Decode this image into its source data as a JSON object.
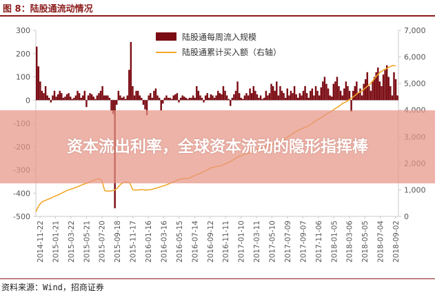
{
  "figure_title": "图 8：陆股通流动情况",
  "source_note": "资料来源：Wind，招商证券",
  "banner_text": "资本流出利率，全球资本流动的隐形指挥棒",
  "colors": {
    "bar": "#7b0c14",
    "line": "#f2a628",
    "title": "#8b1a1a",
    "axis": "#c8c8c8",
    "tick_text": "#555555"
  },
  "chart_data": {
    "type": "bar",
    "title": "",
    "xlabel": "",
    "ylabel": "",
    "ylim": [
      -500,
      300
    ],
    "y2lim": [
      0,
      7000
    ],
    "yticks": [
      300,
      200,
      100,
      0,
      -100,
      -200,
      -300,
      -400,
      -500
    ],
    "y2ticks": [
      "7,000",
      "6,000",
      "5,000",
      "4,000",
      "3,000",
      "2,000",
      "1,000",
      "0"
    ],
    "grid": false,
    "legend_position": "top-center",
    "x_tick_labels": [
      "2014-11-22",
      "2015-01-21",
      "2015-03-22",
      "2015-05-21",
      "2015-07-20",
      "2015-09-18",
      "2015-11-17",
      "2016-01-16",
      "2016-03-16",
      "2016-05-15",
      "2016-07-14",
      "2016-09-12",
      "2016-11-11",
      "2017-01-10",
      "2017-03-11",
      "2017-05-10",
      "2017-07-09",
      "2017-09-07",
      "2017-11-06",
      "2018-01-05",
      "2018-03-06",
      "2018-05-05",
      "2018-07-04",
      "2018-09-02"
    ],
    "series": [
      {
        "name": "陆股通每周流入规模",
        "type": "bar",
        "axis": "left",
        "values": [
          230,
          145,
          80,
          40,
          30,
          60,
          20,
          10,
          -10,
          20,
          40,
          15,
          25,
          40,
          30,
          10,
          15,
          25,
          30,
          15,
          5,
          10,
          20,
          40,
          30,
          10,
          20,
          40,
          -30,
          20,
          30,
          25,
          15,
          5,
          20,
          30,
          40,
          60,
          20,
          20,
          20,
          10,
          -45,
          -60,
          -465,
          -20,
          40,
          20,
          10,
          15,
          5,
          20,
          130,
          250,
          60,
          20,
          40,
          40,
          20,
          10,
          -20,
          -40,
          -65,
          20,
          30,
          10,
          40,
          50,
          20,
          10,
          -45,
          -15,
          10,
          20,
          10,
          10,
          5,
          20,
          25,
          30,
          -10,
          10,
          20,
          15,
          10,
          5,
          10,
          10,
          20,
          10,
          60,
          40,
          20,
          10,
          -10,
          20,
          30,
          10,
          25,
          20,
          10,
          20,
          40,
          30,
          25,
          60,
          40,
          20,
          5,
          -25,
          10,
          25,
          40,
          80,
          30,
          10,
          5,
          20,
          30,
          20,
          50,
          30,
          60,
          40,
          25,
          10,
          20,
          5,
          10,
          40,
          20,
          30,
          70,
          60,
          40,
          80,
          20,
          60,
          40,
          30,
          10,
          50,
          20,
          40,
          30,
          60,
          25,
          10,
          30,
          20,
          40,
          60,
          30,
          10,
          40,
          50,
          20,
          60,
          40,
          20,
          55,
          80,
          100,
          70,
          50,
          20,
          15,
          70,
          80,
          100,
          60,
          40,
          20,
          50,
          80,
          60,
          40,
          -50,
          40,
          60,
          80,
          30,
          50,
          20,
          70,
          90,
          120,
          60,
          40,
          80,
          100,
          120,
          140,
          80,
          60,
          110,
          130,
          150,
          100,
          60,
          20,
          120,
          90,
          20
        ]
      },
      {
        "name": "陆股通累计买入额（右轴）",
        "type": "line",
        "axis": "right",
        "values": [
          180,
          420,
          550,
          600,
          650,
          700,
          760,
          800,
          860,
          920,
          980,
          1020,
          1060,
          1100,
          1150,
          1200,
          1240,
          1280,
          1330,
          1380,
          1420,
          1380,
          970,
          950,
          960,
          980,
          1060,
          1200,
          1280,
          1290,
          1260,
          1000,
          990,
          1000,
          1010,
          990,
          1000,
          1010,
          1050,
          1080,
          1120,
          1160,
          1200,
          1250,
          1300,
          1350,
          1400,
          1420,
          1430,
          1440,
          1500,
          1550,
          1600,
          1650,
          1700,
          1760,
          1830,
          1860,
          1880,
          1900,
          1950,
          2000,
          2050,
          2120,
          2200,
          2260,
          2300,
          2350,
          2380,
          2420,
          2480,
          2520,
          2560,
          2600,
          2650,
          2700,
          2730,
          2780,
          2820,
          2880,
          2950,
          3020,
          3100,
          3180,
          3250,
          3300,
          3350,
          3400,
          3480,
          3560,
          3640,
          3700,
          3780,
          3860,
          3920,
          4000,
          4080,
          4150,
          4250,
          4300,
          4380,
          4460,
          4550,
          4650,
          4700,
          4800,
          4900,
          5000,
          5150,
          5300,
          5420,
          5500,
          5560,
          5620,
          5680,
          5660
        ]
      }
    ]
  }
}
